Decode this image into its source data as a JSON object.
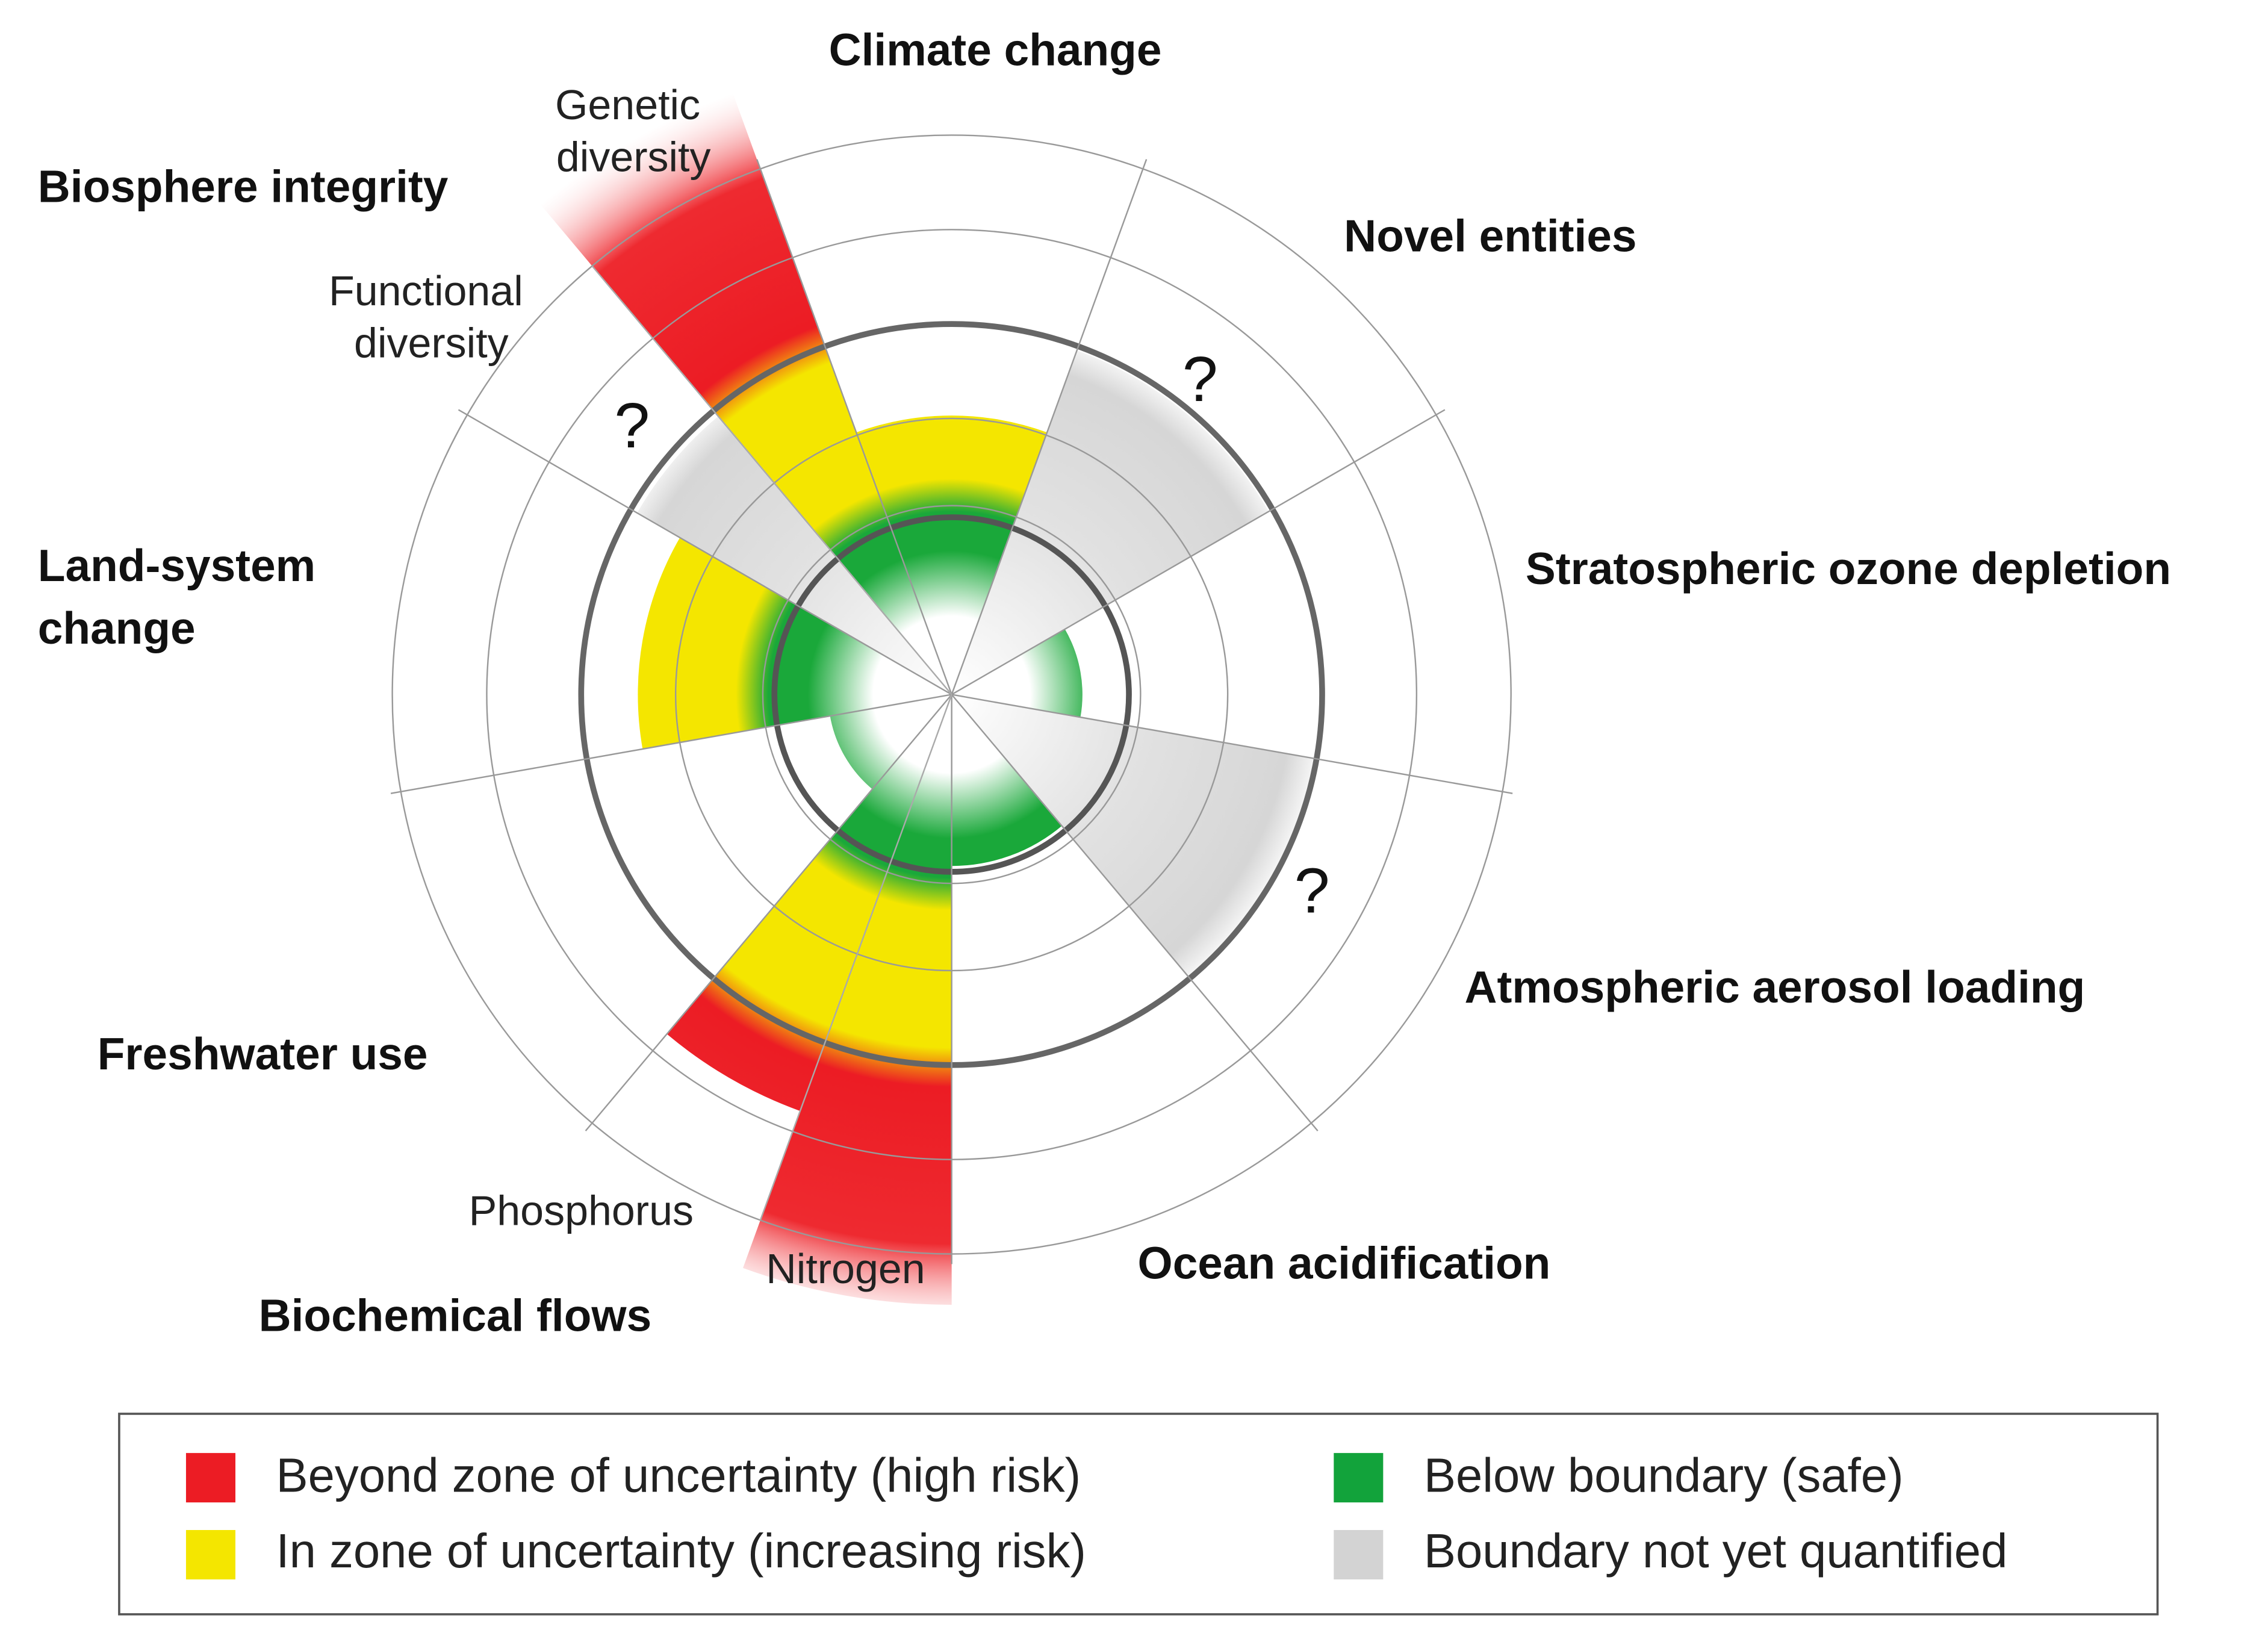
{
  "diagram": {
    "boundaries": [
      {
        "name": [
          "Climate change"
        ]
      },
      {
        "name": [
          "Novel entities"
        ]
      },
      {
        "name": [
          "Stratospheric ozone depletion"
        ]
      },
      {
        "name": [
          "Atmospheric aerosol loading"
        ]
      },
      {
        "name": [
          "Ocean acidification"
        ]
      },
      {
        "name": [
          "Biochemical flows"
        ],
        "sub": [
          [
            "Nitrogen"
          ],
          [
            "Phosphorus"
          ]
        ]
      },
      {
        "name": [
          "Freshwater use"
        ]
      },
      {
        "name": [
          "Land-system",
          "change"
        ]
      },
      {
        "name": [
          "Biosphere integrity"
        ],
        "sub": [
          [
            "Functional",
            "diversity"
          ],
          [
            "Genetic",
            "diversity"
          ]
        ]
      }
    ],
    "unknown_mark": "?",
    "legend": [
      {
        "label": "Beyond zone of uncertainty (high risk)",
        "color": "#ec1c24"
      },
      {
        "label": "In zone of uncertainty (increasing risk)",
        "color": "#f4e600"
      },
      {
        "label": "Below boundary (safe)",
        "color": "#12a33b"
      },
      {
        "label": "Boundary not yet quantified",
        "color": "#d3d3d3"
      }
    ]
  }
}
